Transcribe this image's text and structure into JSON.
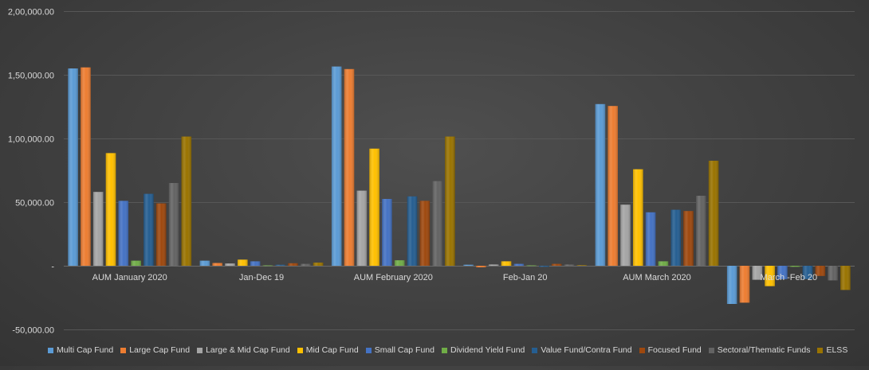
{
  "chart_data": {
    "type": "bar",
    "categories": [
      "AUM January 2020",
      "Jan-Dec 19",
      "AUM February 2020",
      "Feb-Jan 20",
      "AUM March 2020",
      "March -Feb 20"
    ],
    "ylim": [
      -50000,
      200000
    ],
    "yticks": [
      -50000,
      0,
      50000,
      100000,
      150000,
      200000
    ],
    "ytick_labels": [
      "-50,000.00",
      "-",
      "50,000.00",
      "1,00,000.00",
      "1,50,000.00",
      "2,00,000.00"
    ],
    "grid": true,
    "legend_position": "bottom",
    "title": "",
    "xlabel": "",
    "ylabel": "",
    "series": [
      {
        "name": "Multi Cap Fund",
        "color": "#5b9bd5",
        "values": [
          155000,
          4000,
          156500,
          800,
          127000,
          -30000
        ]
      },
      {
        "name": "Large Cap Fund",
        "color": "#ed7d31",
        "values": [
          155800,
          2200,
          154500,
          -1200,
          125500,
          -29000
        ]
      },
      {
        "name": "Large & Mid Cap Fund",
        "color": "#a5a5a5",
        "values": [
          58000,
          1800,
          59000,
          1000,
          48000,
          -11000
        ]
      },
      {
        "name": "Mid Cap Fund",
        "color": "#ffc000",
        "values": [
          88500,
          4800,
          92000,
          3500,
          75800,
          -16000
        ]
      },
      {
        "name": "Small Cap Fund",
        "color": "#4472c4",
        "values": [
          51000,
          3500,
          52500,
          1500,
          42000,
          -10500
        ]
      },
      {
        "name": "Dividend Yield Fund",
        "color": "#70ad47",
        "values": [
          4000,
          300,
          4300,
          300,
          3500,
          -800
        ]
      },
      {
        "name": "Value Fund/Contra Fund",
        "color": "#255e91",
        "values": [
          56500,
          800,
          54500,
          -800,
          44000,
          -10500
        ]
      },
      {
        "name": "Focused Fund",
        "color": "#9e480e",
        "values": [
          49000,
          2000,
          51000,
          1500,
          43000,
          -8000
        ]
      },
      {
        "name": "Sectoral/Thematic Funds",
        "color": "#636363",
        "values": [
          65000,
          1500,
          66500,
          1000,
          55000,
          -11500
        ]
      },
      {
        "name": "ELSS",
        "color": "#997300",
        "values": [
          101500,
          2500,
          101500,
          500,
          82500,
          -19000
        ]
      }
    ]
  }
}
